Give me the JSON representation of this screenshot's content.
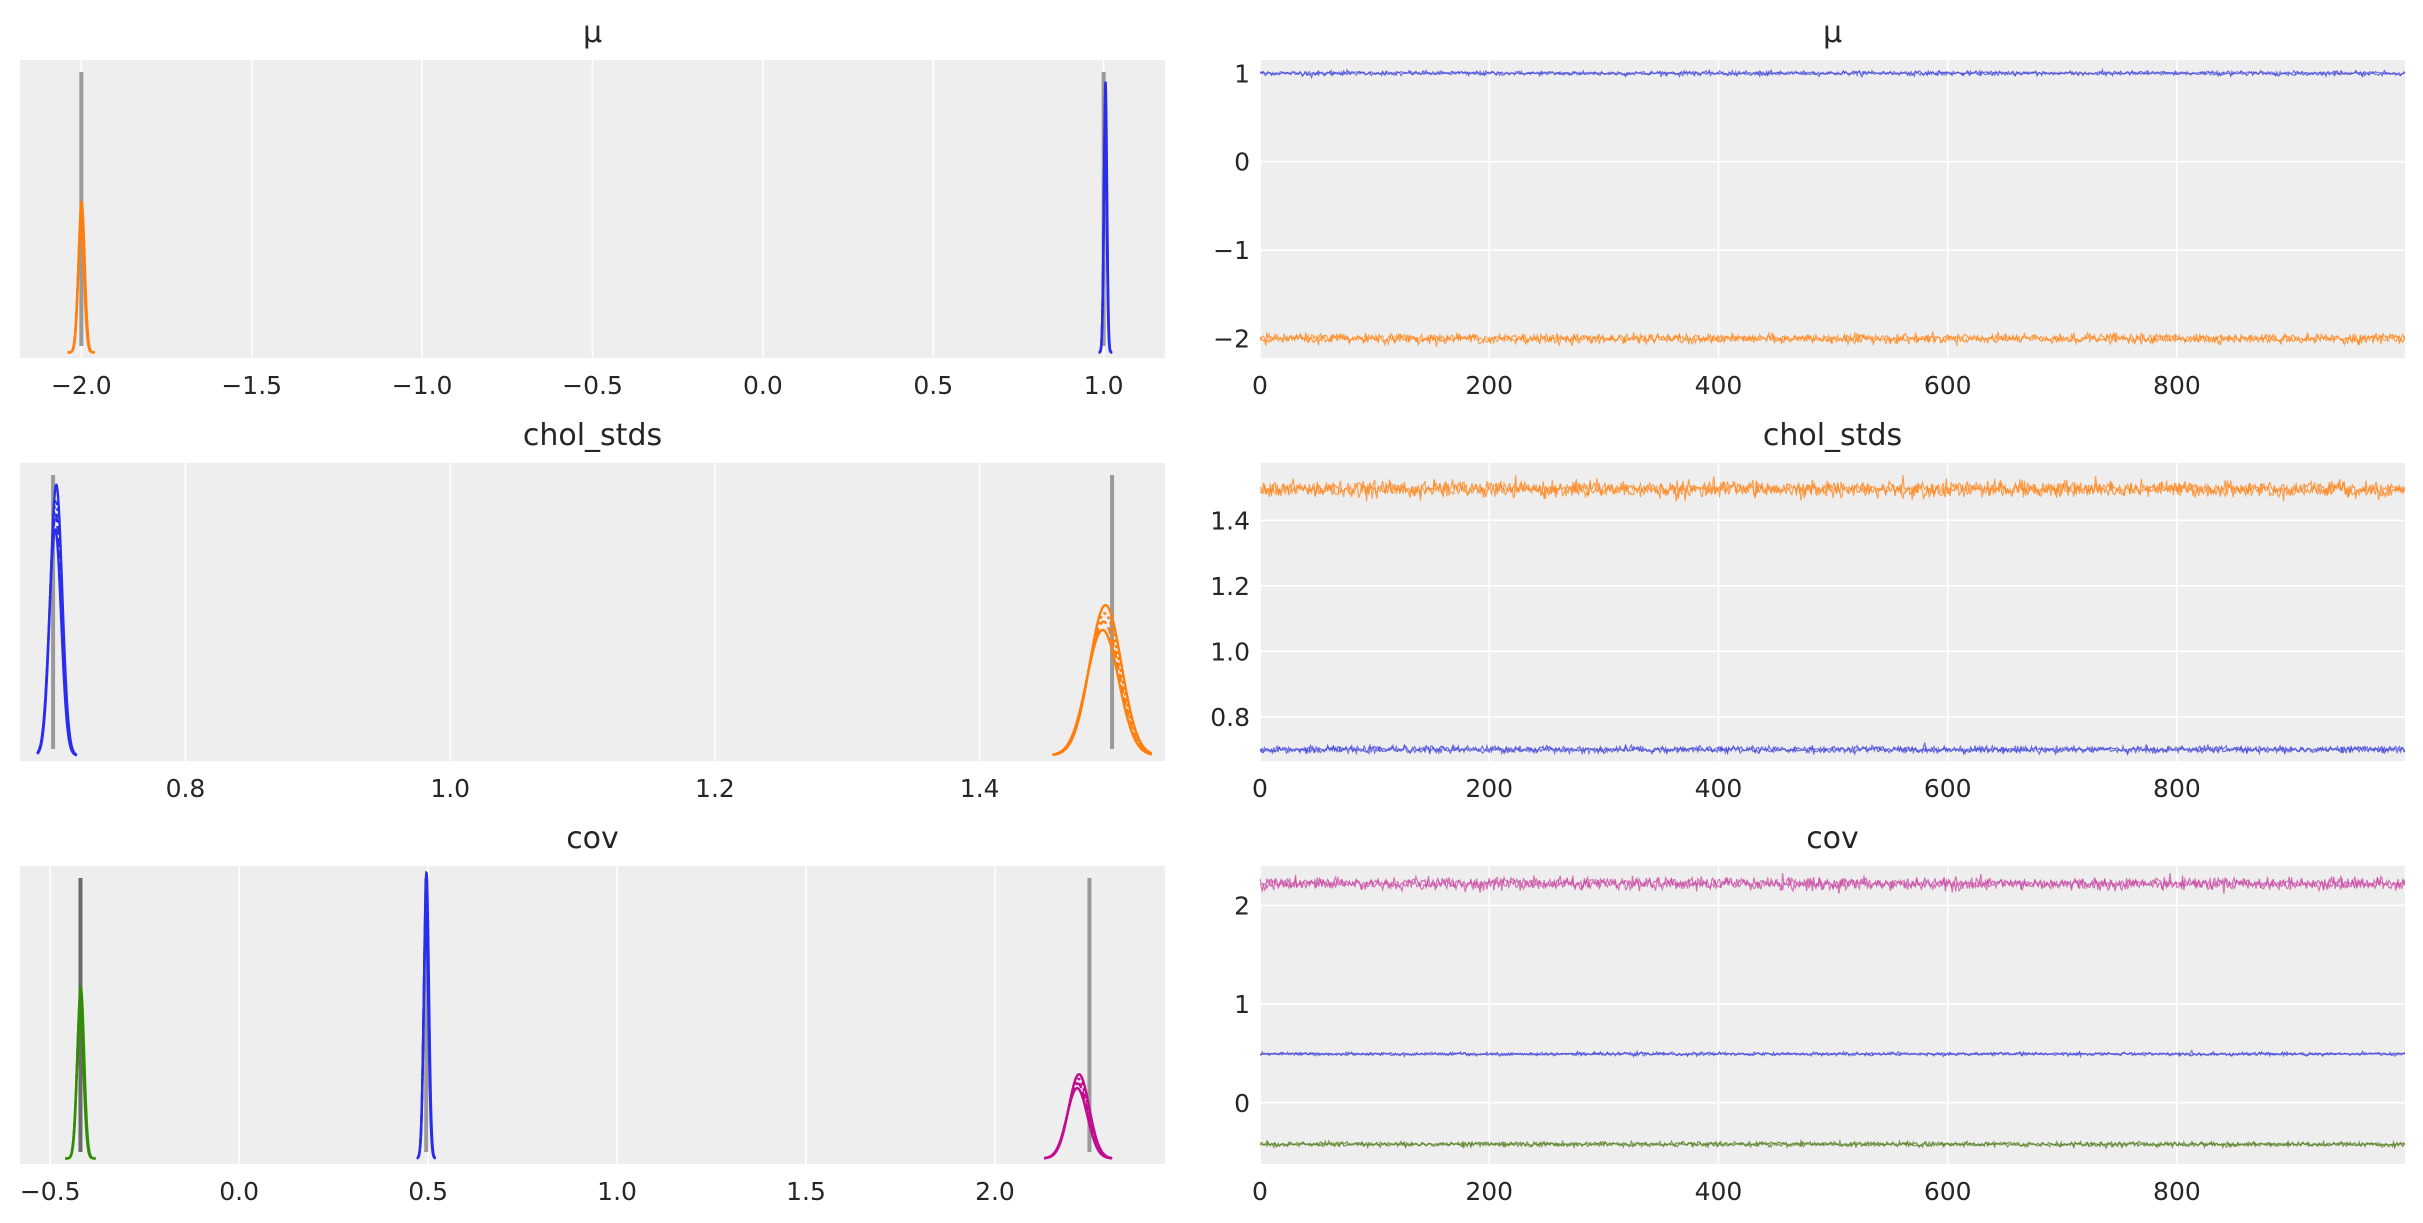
{
  "chart_data": [
    {
      "type": "line",
      "title": "μ",
      "xlim": [
        -2.18,
        1.18
      ],
      "ylim": [
        0,
        1.08
      ],
      "y_ticks_hidden": true,
      "x_ticks": [
        -2.0,
        -1.5,
        -1.0,
        -0.5,
        0.0,
        0.5,
        1.0
      ],
      "x_tick_labels": [
        "−2.0",
        "−1.5",
        "−1.0",
        "−0.5",
        "0.0",
        "0.5",
        "1.0"
      ],
      "reference_lines": [
        {
          "x": -2.0,
          "color": "#9a9a9a"
        },
        {
          "x": 1.0,
          "color": "#9a9a9a"
        }
      ],
      "series": [
        {
          "color": "#ff7f0e",
          "kind": "density",
          "center": -2.0,
          "sd": 0.009,
          "peak": 0.5,
          "span": [
            -2.04,
            -1.96
          ]
        },
        {
          "color": "#2a2eec",
          "kind": "density",
          "center": 1.005,
          "sd": 0.0045,
          "peak": 0.9,
          "span": [
            0.985,
            1.025
          ]
        }
      ]
    },
    {
      "type": "line",
      "title": "μ",
      "xlim": [
        0,
        999
      ],
      "ylim": [
        -2.22,
        1.15
      ],
      "x_ticks": [
        0,
        200,
        400,
        600,
        800
      ],
      "x_tick_labels": [
        "0",
        "200",
        "400",
        "600",
        "800"
      ],
      "y_ticks": [
        1,
        0,
        -1,
        -2
      ],
      "y_tick_labels": [
        "1",
        "0",
        "−1",
        "−2"
      ],
      "series": [
        {
          "color": "#3a3fd9",
          "kind": "trace",
          "level": 1.0,
          "noise": 0.012
        },
        {
          "color": "#ff7f0e",
          "kind": "trace",
          "level": -2.0,
          "noise": 0.025
        }
      ]
    },
    {
      "type": "line",
      "title": "chol_stds",
      "xlim": [
        0.675,
        1.54
      ],
      "ylim": [
        0,
        1.08
      ],
      "y_ticks_hidden": true,
      "x_ticks": [
        0.8,
        1.0,
        1.2,
        1.4
      ],
      "x_tick_labels": [
        "0.8",
        "1.0",
        "1.2",
        "1.4"
      ],
      "reference_lines": [
        {
          "x": 0.7,
          "color": "#9a9a9a"
        },
        {
          "x": 1.5,
          "color": "#9a9a9a"
        }
      ],
      "series": [
        {
          "color": "#2a2eec",
          "kind": "density",
          "center": 0.702,
          "sd": 0.0045,
          "peak": 0.9,
          "span": [
            0.688,
            0.718
          ]
        },
        {
          "color": "#ff7f0e",
          "kind": "density",
          "center": 1.494,
          "sd": 0.012,
          "peak": 0.5,
          "span": [
            1.455,
            1.53
          ]
        }
      ]
    },
    {
      "type": "line",
      "title": "chol_stds",
      "xlim": [
        0,
        999
      ],
      "ylim": [
        0.665,
        1.575
      ],
      "x_ticks": [
        0,
        200,
        400,
        600,
        800
      ],
      "x_tick_labels": [
        "0",
        "200",
        "400",
        "600",
        "800"
      ],
      "y_ticks": [
        1.4,
        1.2,
        1.0,
        0.8
      ],
      "y_tick_labels": [
        "1.4",
        "1.2",
        "1.0",
        "0.8"
      ],
      "series": [
        {
          "color": "#ff7f0e",
          "kind": "trace",
          "level": 1.495,
          "noise": 0.012
        },
        {
          "color": "#3a3fd9",
          "kind": "trace",
          "level": 0.7,
          "noise": 0.005
        }
      ]
    },
    {
      "type": "line",
      "title": "cov",
      "xlim": [
        -0.58,
        2.45
      ],
      "ylim": [
        0,
        1.08
      ],
      "y_ticks_hidden": true,
      "x_ticks": [
        -0.5,
        0.0,
        0.5,
        1.0,
        1.5,
        2.0
      ],
      "x_tick_labels": [
        "−0.5",
        "0.0",
        "0.5",
        "1.0",
        "1.5",
        "2.0"
      ],
      "reference_lines": [
        {
          "x": -0.42,
          "color": "#6a6a6a"
        },
        {
          "x": 0.495,
          "color": "#9a9a9a"
        },
        {
          "x": 2.25,
          "color": "#9a9a9a"
        }
      ],
      "series": [
        {
          "color": "#328c06",
          "kind": "density",
          "center": -0.42,
          "sd": 0.009,
          "peak": 0.57,
          "span": [
            -0.46,
            -0.38
          ]
        },
        {
          "color": "#2a2eec",
          "kind": "density",
          "center": 0.495,
          "sd": 0.0065,
          "peak": 0.95,
          "span": [
            0.47,
            0.52
          ]
        },
        {
          "color": "#c10c90",
          "kind": "density",
          "center": 2.22,
          "sd": 0.027,
          "peak": 0.28,
          "span": [
            2.13,
            2.31
          ]
        }
      ]
    },
    {
      "type": "line",
      "title": "cov",
      "xlim": [
        0,
        999
      ],
      "ylim": [
        -0.62,
        2.4
      ],
      "x_ticks": [
        0,
        200,
        400,
        600,
        800
      ],
      "x_tick_labels": [
        "0",
        "200",
        "400",
        "600",
        "800"
      ],
      "y_ticks": [
        2,
        1,
        0
      ],
      "y_tick_labels": [
        "2",
        "1",
        "0"
      ],
      "series": [
        {
          "color": "#c63f9f",
          "kind": "trace",
          "level": 2.22,
          "noise": 0.03
        },
        {
          "color": "#3a3fd9",
          "kind": "trace",
          "level": 0.495,
          "noise": 0.008
        },
        {
          "color": "#4f7a18",
          "kind": "trace",
          "level": -0.42,
          "noise": 0.012
        }
      ]
    }
  ],
  "style": {
    "panel_background": "#eeeeee",
    "grid_color": "#ffffff",
    "text_color": "#262626"
  }
}
